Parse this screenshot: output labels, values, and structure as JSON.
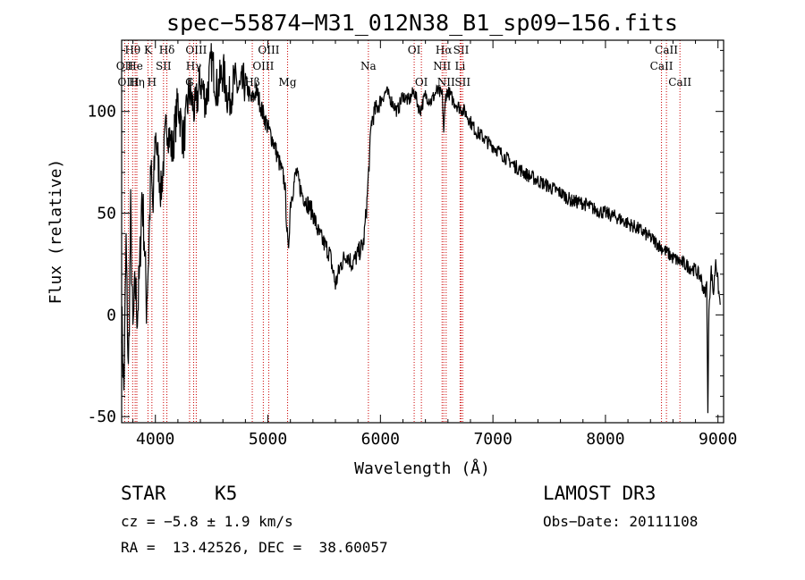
{
  "chart_data": {
    "type": "line",
    "title": "spec−55874−M31_012N38_B1_sp09−156.fits",
    "xlabel": "Wavelength (Å)",
    "ylabel": "Flux (relative)",
    "xlim": [
      3700,
      9050
    ],
    "ylim": [
      -53,
      135
    ],
    "x_ticks": [
      4000,
      5000,
      6000,
      7000,
      8000,
      9000
    ],
    "y_ticks": [
      -50,
      0,
      50,
      100
    ],
    "series": [
      {
        "name": "flux",
        "anchors": [
          [
            3700,
            0
          ],
          [
            3720,
            -38
          ],
          [
            3740,
            35
          ],
          [
            3760,
            -30
          ],
          [
            3780,
            50
          ],
          [
            3800,
            -10
          ],
          [
            3820,
            15
          ],
          [
            3840,
            0
          ],
          [
            3860,
            20
          ],
          [
            3880,
            60
          ],
          [
            3900,
            40
          ],
          [
            3920,
            5
          ],
          [
            3940,
            30
          ],
          [
            3960,
            70
          ],
          [
            3980,
            50
          ],
          [
            4000,
            90
          ],
          [
            4050,
            60
          ],
          [
            4100,
            95
          ],
          [
            4150,
            80
          ],
          [
            4200,
            105
          ],
          [
            4250,
            85
          ],
          [
            4300,
            110
          ],
          [
            4350,
            100
          ],
          [
            4400,
            115
          ],
          [
            4450,
            105
          ],
          [
            4500,
            125
          ],
          [
            4550,
            110
          ],
          [
            4600,
            120
          ],
          [
            4650,
            105
          ],
          [
            4700,
            115
          ],
          [
            4750,
            110
          ],
          [
            4800,
            115
          ],
          [
            4850,
            105
          ],
          [
            4900,
            110
          ],
          [
            4950,
            100
          ],
          [
            5000,
            92
          ],
          [
            5050,
            85
          ],
          [
            5100,
            75
          ],
          [
            5150,
            65
          ],
          [
            5180,
            30
          ],
          [
            5200,
            55
          ],
          [
            5250,
            70
          ],
          [
            5300,
            60
          ],
          [
            5350,
            55
          ],
          [
            5400,
            50
          ],
          [
            5450,
            40
          ],
          [
            5500,
            35
          ],
          [
            5550,
            30
          ],
          [
            5600,
            15
          ],
          [
            5650,
            25
          ],
          [
            5700,
            30
          ],
          [
            5750,
            25
          ],
          [
            5800,
            30
          ],
          [
            5850,
            35
          ],
          [
            5880,
            55
          ],
          [
            5900,
            75
          ],
          [
            5920,
            95
          ],
          [
            5950,
            100
          ],
          [
            6000,
            105
          ],
          [
            6050,
            110
          ],
          [
            6100,
            105
          ],
          [
            6150,
            100
          ],
          [
            6200,
            108
          ],
          [
            6250,
            105
          ],
          [
            6300,
            110
          ],
          [
            6350,
            100
          ],
          [
            6400,
            108
          ],
          [
            6450,
            105
          ],
          [
            6500,
            110
          ],
          [
            6550,
            108
          ],
          [
            6563,
            90
          ],
          [
            6580,
            108
          ],
          [
            6600,
            110
          ],
          [
            6650,
            105
          ],
          [
            6700,
            102
          ],
          [
            6750,
            100
          ],
          [
            6800,
            95
          ],
          [
            6850,
            90
          ],
          [
            6900,
            88
          ],
          [
            6950,
            85
          ],
          [
            7000,
            83
          ],
          [
            7100,
            78
          ],
          [
            7200,
            73
          ],
          [
            7300,
            69
          ],
          [
            7400,
            66
          ],
          [
            7500,
            63
          ],
          [
            7600,
            60
          ],
          [
            7700,
            56
          ],
          [
            7800,
            55
          ],
          [
            7900,
            52
          ],
          [
            8000,
            50
          ],
          [
            8100,
            48
          ],
          [
            8200,
            45
          ],
          [
            8300,
            42
          ],
          [
            8400,
            38
          ],
          [
            8500,
            33
          ],
          [
            8600,
            28
          ],
          [
            8700,
            25
          ],
          [
            8800,
            22
          ],
          [
            8850,
            18
          ],
          [
            8880,
            10
          ],
          [
            8900,
            15
          ],
          [
            8910,
            -50
          ],
          [
            8920,
            5
          ],
          [
            8940,
            22
          ],
          [
            8960,
            10
          ],
          [
            8980,
            28
          ],
          [
            9000,
            15
          ],
          [
            9020,
            5
          ]
        ]
      }
    ],
    "line_markers": [
      {
        "name": "Hθ",
        "wavelength": 3798,
        "row": 0
      },
      {
        "name": "OII",
        "wavelength": 3727,
        "row": 1
      },
      {
        "name": "OIII",
        "wavelength": 3760,
        "row": 2
      },
      {
        "name": "He",
        "wavelength": 3820,
        "row": 1
      },
      {
        "name": "Hη",
        "wavelength": 3835,
        "row": 2
      },
      {
        "name": "K",
        "wavelength": 3934,
        "row": 0
      },
      {
        "name": "SII",
        "wavelength": 4072,
        "row": 1
      },
      {
        "name": "H",
        "wavelength": 3969,
        "row": 2
      },
      {
        "name": "Hδ",
        "wavelength": 4102,
        "row": 0
      },
      {
        "name": "OIII",
        "wavelength": 4363,
        "row": 0
      },
      {
        "name": "Hγ",
        "wavelength": 4340,
        "row": 1
      },
      {
        "name": "G",
        "wavelength": 4304,
        "row": 2
      },
      {
        "name": "Hβ",
        "wavelength": 4861,
        "row": 2
      },
      {
        "name": "OIII",
        "wavelength": 5007,
        "row": 0
      },
      {
        "name": "OIII",
        "wavelength": 4959,
        "row": 1
      },
      {
        "name": "Mg",
        "wavelength": 5175,
        "row": 2
      },
      {
        "name": "Na",
        "wavelength": 5893,
        "row": 1
      },
      {
        "name": "OI",
        "wavelength": 6300,
        "row": 0
      },
      {
        "name": "OI",
        "wavelength": 6364,
        "row": 2
      },
      {
        "name": "Hα",
        "wavelength": 6563,
        "row": 0
      },
      {
        "name": "NII",
        "wavelength": 6548,
        "row": 1
      },
      {
        "name": "NII",
        "wavelength": 6584,
        "row": 2
      },
      {
        "name": "SII",
        "wavelength": 6717,
        "row": 0
      },
      {
        "name": "Li",
        "wavelength": 6708,
        "row": 1
      },
      {
        "name": "SII",
        "wavelength": 6731,
        "row": 2
      },
      {
        "name": "CaII",
        "wavelength": 8542,
        "row": 0
      },
      {
        "name": "CaII",
        "wavelength": 8498,
        "row": 1
      },
      {
        "name": "CaII",
        "wavelength": 8662,
        "row": 2
      }
    ]
  },
  "info": {
    "object_class": "STAR",
    "subclass": "K5",
    "cz": "cz = −5.8 ± 1.9 km/s",
    "coords": "RA =  13.42526, DEC =  38.60057",
    "survey": "LAMOST DR3",
    "obs_date": "Obs−Date: 20111108"
  }
}
